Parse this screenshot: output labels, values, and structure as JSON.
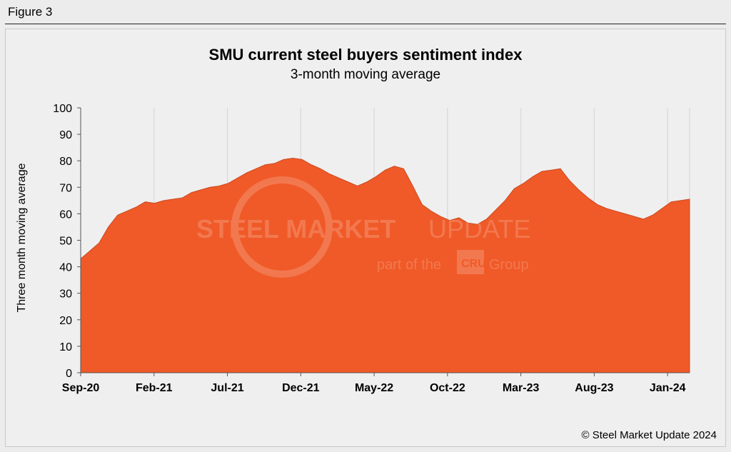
{
  "figure_label": "Figure 3",
  "copyright": "© Steel Market Update 2024",
  "watermark": {
    "line1_bold": "STEEL MARKET",
    "line1_light": "UPDATE",
    "line2_prefix": "part of the",
    "line2_badge": "CRU",
    "line2_suffix": "Group"
  },
  "chart_data": {
    "type": "area",
    "title": "SMU current steel buyers sentiment index",
    "subtitle": "3-month moving average",
    "ylabel": "Three month moving average",
    "xlabel": "",
    "ylim": [
      0,
      100
    ],
    "yticks": [
      0,
      10,
      20,
      30,
      40,
      50,
      60,
      70,
      80,
      90,
      100
    ],
    "x_tick_labels": [
      "Sep-20",
      "Feb-21",
      "Jul-21",
      "Dec-21",
      "May-22",
      "Oct-22",
      "Mar-23",
      "Aug-23",
      "Jan-24"
    ],
    "grid": "vertical",
    "legend": "none",
    "color": "#f05a28",
    "x": [
      "2020-09",
      "2020-10",
      "2020-11",
      "2020-12",
      "2021-01",
      "2021-02",
      "2021-03",
      "2021-04",
      "2021-05",
      "2021-06",
      "2021-07",
      "2021-08",
      "2021-09",
      "2021-10",
      "2021-11",
      "2021-12",
      "2022-01",
      "2022-02",
      "2022-03",
      "2022-04",
      "2022-05",
      "2022-06",
      "2022-07",
      "2022-08",
      "2022-09",
      "2022-10",
      "2022-11",
      "2022-12",
      "2023-01",
      "2023-02",
      "2023-03",
      "2023-04",
      "2023-05",
      "2023-06",
      "2023-07",
      "2023-08",
      "2023-09",
      "2023-10",
      "2023-11",
      "2023-12",
      "2024-01",
      "2024-02"
    ],
    "x_semimonthly_values": [
      43,
      46,
      49,
      55,
      59.5,
      61,
      62.5,
      64.5,
      64,
      65,
      65.5,
      66,
      68,
      69,
      70,
      70.5,
      71.5,
      73.5,
      75.5,
      77,
      78.5,
      79,
      80.5,
      81,
      80.5,
      78.5,
      77,
      75,
      73.5,
      72,
      70.5,
      72,
      74,
      76.5,
      78,
      77,
      70.5,
      63.5,
      61,
      59,
      57.5,
      58.5,
      56.5,
      56,
      58,
      61.5,
      65,
      69.5,
      71.5,
      74,
      76,
      76.5,
      77,
      72.5,
      69,
      66,
      63.5,
      62,
      61,
      60,
      59,
      58,
      59.5,
      62,
      64.5,
      65,
      65.5
    ]
  }
}
